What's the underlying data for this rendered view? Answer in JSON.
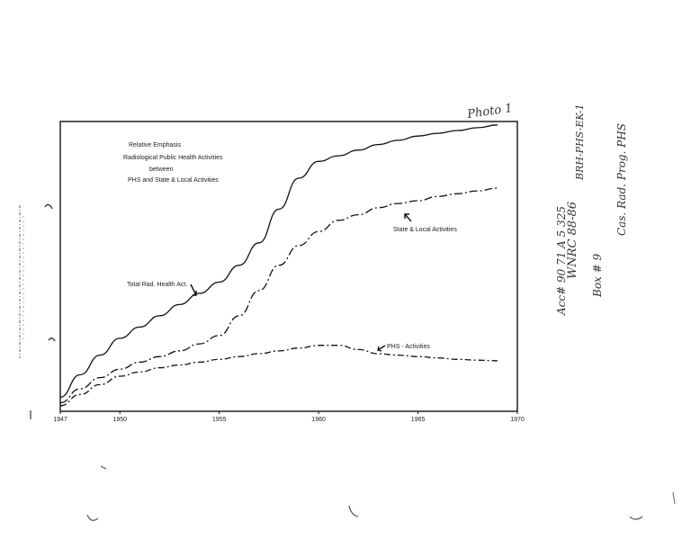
{
  "chart_data": {
    "type": "line",
    "title_lines": [
      "Relative Emphasis",
      "Radiological Public Health Activities",
      "between",
      "PHS and State & Local Activities"
    ],
    "xlabel": "",
    "ylabel": "",
    "xlim": [
      1947,
      1970
    ],
    "ylim": [
      0,
      10
    ],
    "x_ticks": [
      "1947",
      "1950",
      "1955",
      "1960",
      "1965",
      "1970"
    ],
    "grid": false,
    "series": [
      {
        "name": "Total Rad. Health Act.",
        "style": "solid",
        "x": [
          1947,
          1948,
          1949,
          1950,
          1951,
          1952,
          1953,
          1954,
          1955,
          1956,
          1957,
          1958,
          1959,
          1960,
          1961,
          1962,
          1963,
          1964,
          1965,
          1966,
          1967,
          1968,
          1969
        ],
        "y": [
          0.5,
          1.3,
          2.0,
          2.6,
          3.0,
          3.4,
          3.8,
          4.2,
          4.6,
          5.2,
          6.0,
          7.2,
          8.3,
          8.9,
          9.1,
          9.3,
          9.5,
          9.65,
          9.8,
          9.9,
          10.0,
          10.1,
          10.2
        ]
      },
      {
        "name": "State & Local Activities",
        "style": "dashed",
        "x": [
          1947,
          1948,
          1949,
          1950,
          1951,
          1952,
          1953,
          1954,
          1955,
          1956,
          1957,
          1958,
          1959,
          1960,
          1961,
          1962,
          1963,
          1964,
          1965,
          1966,
          1967,
          1968,
          1969
        ],
        "y": [
          0.3,
          0.8,
          1.2,
          1.5,
          1.75,
          1.95,
          2.15,
          2.4,
          2.7,
          3.4,
          4.3,
          5.2,
          5.9,
          6.4,
          6.8,
          7.0,
          7.25,
          7.4,
          7.5,
          7.65,
          7.75,
          7.85,
          7.95
        ]
      },
      {
        "name": "PHS - Activities",
        "style": "dashed",
        "x": [
          1947,
          1948,
          1949,
          1950,
          1951,
          1952,
          1953,
          1954,
          1955,
          1956,
          1957,
          1958,
          1959,
          1960,
          1961,
          1962,
          1963,
          1964,
          1965,
          1966,
          1967,
          1968,
          1969
        ],
        "y": [
          0.2,
          0.6,
          0.95,
          1.25,
          1.4,
          1.55,
          1.65,
          1.75,
          1.85,
          1.95,
          2.05,
          2.15,
          2.25,
          2.35,
          2.35,
          2.2,
          2.05,
          2.0,
          1.95,
          1.9,
          1.85,
          1.82,
          1.8
        ]
      }
    ],
    "annotations": [
      {
        "text": "Total Rad. Health Act.",
        "series": "Total Rad. Health Act."
      },
      {
        "text": "State & Local Activities",
        "series": "State & Local Activities"
      },
      {
        "text": "PHS - Activities",
        "series": "PHS - Activities"
      }
    ]
  },
  "handwriting": {
    "corner_note": "Photo 1",
    "margin_lines": [
      "WNRC 88-86",
      "Acc# 90 71 A 5 325",
      "Box # 9",
      "BRH-PHS-EK-1",
      "Cas. Rad. Prog. PHS"
    ]
  }
}
